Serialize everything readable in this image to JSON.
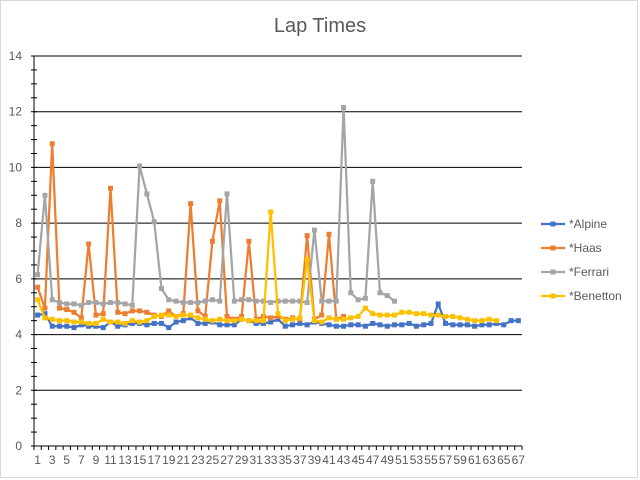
{
  "chart_data": {
    "type": "line",
    "title": "Lap Times",
    "xlabel": "",
    "ylabel": "",
    "ylim": [
      0,
      14
    ],
    "yticks": [
      0,
      2,
      4,
      6,
      8,
      10,
      12,
      14
    ],
    "xlim": [
      1,
      67
    ],
    "grid": "horizontal",
    "legend_position": "right",
    "series": [
      {
        "name": "*Alpine",
        "color": "#4472C4",
        "values": [
          4.7,
          4.75,
          4.3,
          4.3,
          4.3,
          4.25,
          4.35,
          4.3,
          4.3,
          4.25,
          4.45,
          4.3,
          4.35,
          4.4,
          4.4,
          4.35,
          4.4,
          4.4,
          4.25,
          4.45,
          4.5,
          4.6,
          4.4,
          4.4,
          4.45,
          4.35,
          4.35,
          4.35,
          4.55,
          4.5,
          4.4,
          4.4,
          4.45,
          4.55,
          4.3,
          4.35,
          4.4,
          4.35,
          4.45,
          4.4,
          4.35,
          4.3,
          4.3,
          4.35,
          4.35,
          4.3,
          4.4,
          4.35,
          4.3,
          4.35,
          4.35,
          4.4,
          4.3,
          4.35,
          4.4,
          5.1,
          4.4,
          4.35,
          4.35,
          4.35,
          4.3,
          4.35,
          4.35,
          4.4,
          4.35,
          4.5,
          4.5
        ]
      },
      {
        "name": "*Haas",
        "color": "#ED7D31",
        "values": [
          5.7,
          4.95,
          10.85,
          4.95,
          4.9,
          4.8,
          4.6,
          7.25,
          4.7,
          4.75,
          9.25,
          4.8,
          4.75,
          4.85,
          4.85,
          4.8,
          4.7,
          4.65,
          4.85,
          4.65,
          4.75,
          8.7,
          4.85,
          4.65,
          7.35,
          8.8,
          4.65,
          4.55,
          4.65,
          7.35,
          4.55,
          4.65,
          4.6,
          4.65,
          4.55,
          4.6,
          4.55,
          7.55,
          4.55,
          4.7,
          7.6,
          4.55,
          4.65
        ]
      },
      {
        "name": "*Ferrari",
        "color": "#A5A5A5",
        "values": [
          6.15,
          9.0,
          5.25,
          5.15,
          5.1,
          5.1,
          5.05,
          5.15,
          5.15,
          5.1,
          5.15,
          5.15,
          5.1,
          5.05,
          10.05,
          9.05,
          8.05,
          5.65,
          5.25,
          5.2,
          5.15,
          5.15,
          5.15,
          5.2,
          5.25,
          5.2,
          9.05,
          5.2,
          5.25,
          5.25,
          5.2,
          5.2,
          5.15,
          5.2,
          5.2,
          5.2,
          5.2,
          5.15,
          7.75,
          5.2,
          5.2,
          5.2,
          12.15,
          5.5,
          5.25,
          5.3,
          9.5,
          5.5,
          5.4,
          5.2
        ]
      },
      {
        "name": "*Benetton",
        "color": "#FFC000",
        "values": [
          5.25,
          4.6,
          4.55,
          4.5,
          4.5,
          4.45,
          4.45,
          4.4,
          4.4,
          4.55,
          4.45,
          4.45,
          4.4,
          4.5,
          4.45,
          4.5,
          4.65,
          4.7,
          4.7,
          4.65,
          4.7,
          4.7,
          4.6,
          4.55,
          4.5,
          4.55,
          4.5,
          4.5,
          4.55,
          4.5,
          4.5,
          4.5,
          8.4,
          4.75,
          4.5,
          4.55,
          4.6,
          6.7,
          4.5,
          4.45,
          4.6,
          4.55,
          4.55,
          4.6,
          4.65,
          4.95,
          4.75,
          4.7,
          4.7,
          4.7,
          4.8,
          4.8,
          4.75,
          4.75,
          4.7,
          4.7,
          4.65,
          4.65,
          4.6,
          4.55,
          4.5,
          4.5,
          4.55,
          4.5
        ]
      }
    ]
  }
}
